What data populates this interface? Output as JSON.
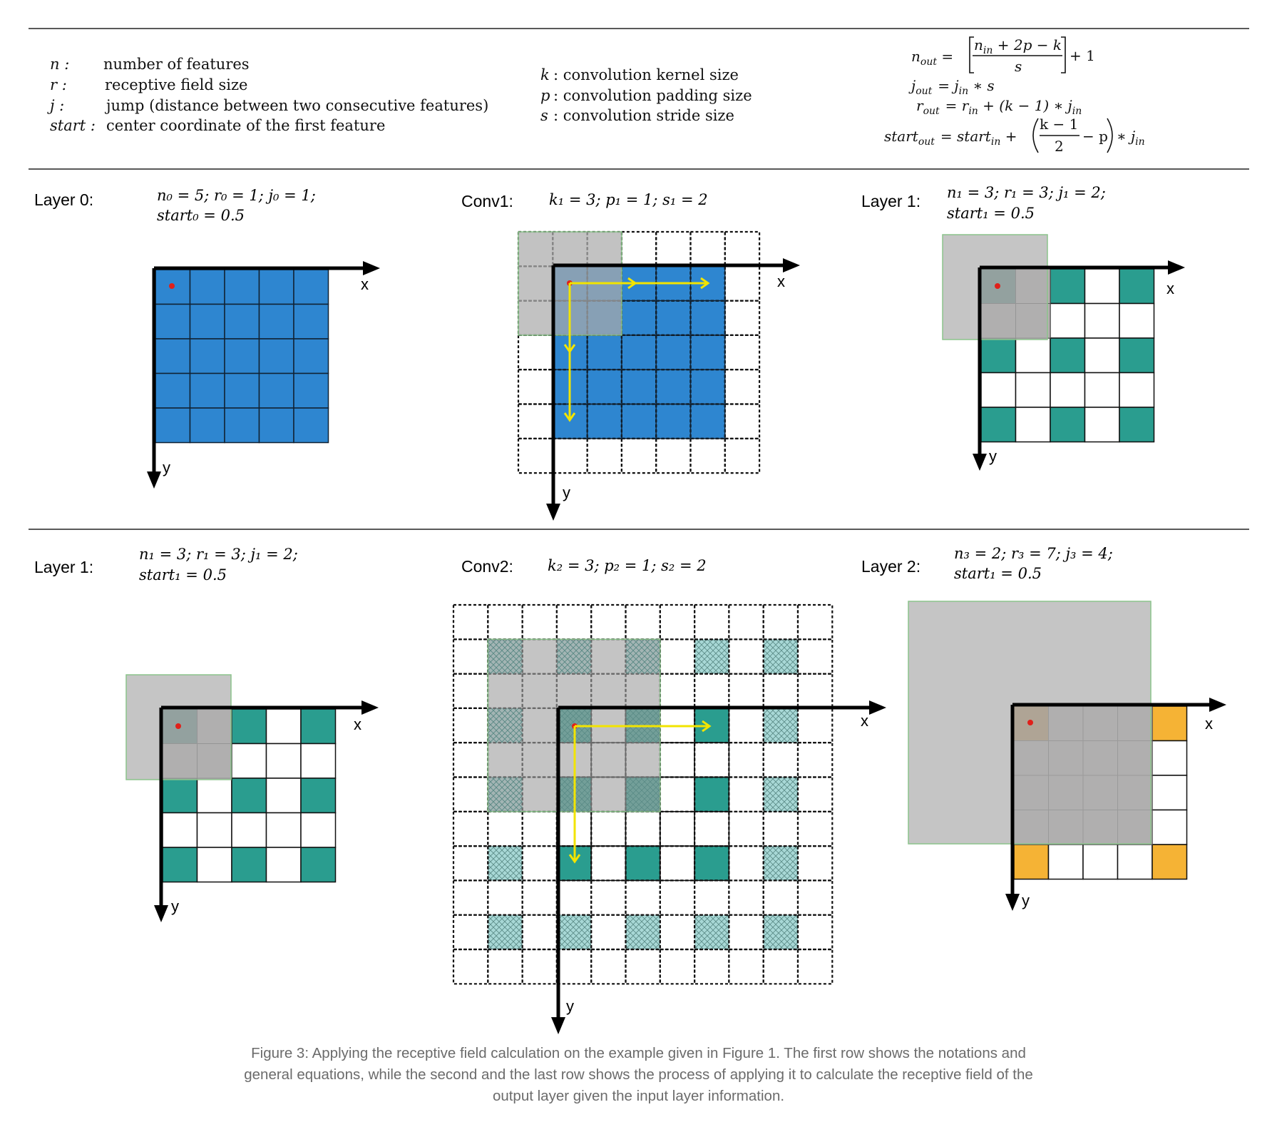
{
  "notation": {
    "items": [
      {
        "sym": "n :",
        "desc": "number of features"
      },
      {
        "sym": "r :",
        "desc": "receptive field size"
      },
      {
        "sym": "j :",
        "desc": "jump (distance between two consecutive features)"
      },
      {
        "sym": "start :",
        "desc": "center coordinate of the first feature"
      }
    ],
    "conv_items": [
      {
        "sym": "k",
        "desc": ": convolution kernel size"
      },
      {
        "sym": "p",
        "desc": ": convolution padding size"
      },
      {
        "sym": "s",
        "desc": ": convolution stride size"
      }
    ]
  },
  "equations": {
    "n_lhs": "n",
    "n_lhs_sub": "out",
    "n_num": "n",
    "n_num_sub": "in",
    "n_num_rest": " + 2p − k",
    "n_den": "s",
    "n_plus": "+ 1",
    "j_lhs": "j",
    "j_lhs_sub": "out",
    "j_rhs": "= j",
    "j_rhs_sub": "in",
    "j_rest": " ∗ s",
    "r_lhs": "r",
    "r_lhs_sub": "out",
    "r_rhs": "= r",
    "r_rhs_sub": "in",
    "r_rest": " + (k − 1) ∗ j",
    "r_rest_sub": "in",
    "s_lhs": "start",
    "s_lhs_sub": "out",
    "s_rhs": "= start",
    "s_rhs_sub": "in",
    "s_plus": " +",
    "s_frac_num": "k − 1",
    "s_frac_den": "2",
    "s_minus": "− p",
    "s_tail": "∗ j",
    "s_tail_sub": "in"
  },
  "row2": {
    "layer0": {
      "title": "Layer 0:",
      "line1": "n₀ =  5;  r₀ =  1;  j₀  = 1;",
      "line2": "start₀ = 0.5"
    },
    "conv1": {
      "title": "Conv1:",
      "line1": "k₁ = 3;  p₁ = 1;  s₁ = 2"
    },
    "layer1": {
      "title": "Layer 1:",
      "line1": "n₁ =  3;  r₁  = 3;  j₁  = 2;",
      "line2": "start₁ = 0.5"
    }
  },
  "row3": {
    "layer1": {
      "title": "Layer 1:",
      "line1": "n₁ =  3;  r₁  = 3; j₁  = 2;",
      "line2": "start₁ = 0.5"
    },
    "conv2": {
      "title": "Conv2:",
      "line1": "k₂ = 3;  p₂ = 1;  s₂ = 2"
    },
    "layer2": {
      "title": "Layer 2:",
      "line1": "n₃ = 2;  r₃  = 7; j₃  = 4;",
      "line2": "start₁ = 0.5"
    }
  },
  "axes": {
    "x": "x",
    "y": "y"
  },
  "colors": {
    "blue": "#2e86d0",
    "teal": "#2a9d8f",
    "teal_light": "#a8d8d6",
    "gray": "#bbbbbb",
    "mauve": "#b5afb0",
    "orange": "#f5b335",
    "yellow": "#f2e400",
    "red": "#e0201a"
  },
  "caption": "Figure 3: Applying the receptive field calculation on the example given in Figure 1. The first row shows the notations and general equations, while the second and the last row shows the process of applying it to calculate the receptive field of the output layer given the input layer information."
}
